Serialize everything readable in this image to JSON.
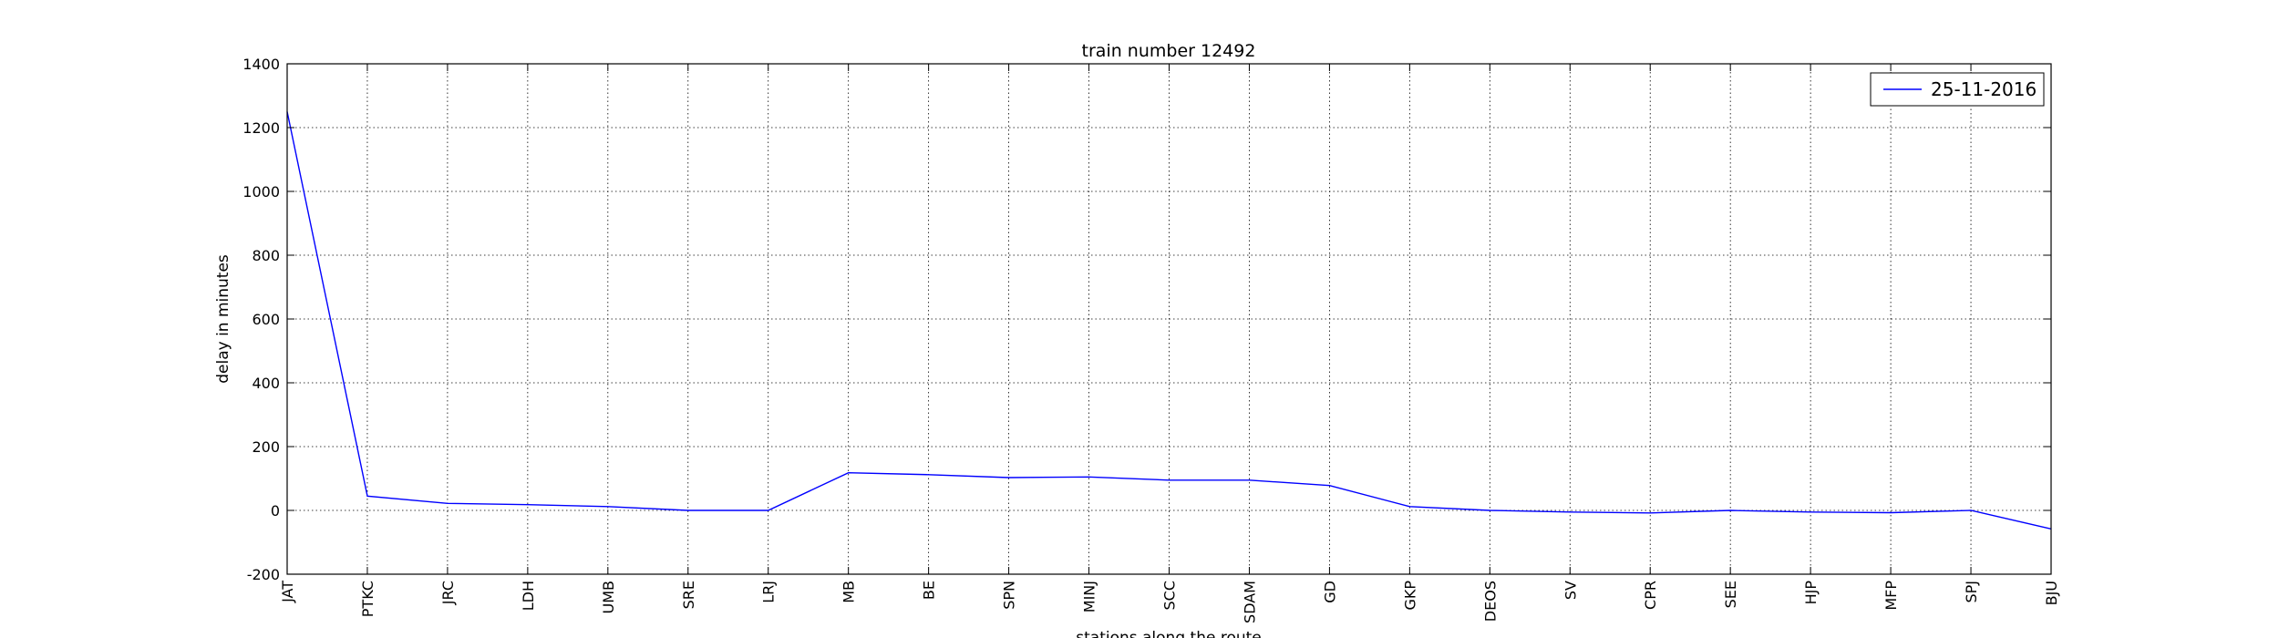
{
  "chart_data": {
    "type": "line",
    "title": "train number 12492",
    "xlabel": "stations along the route",
    "ylabel": "delay in minutes",
    "categories": [
      "JAT",
      "PTKC",
      "JRC",
      "LDH",
      "UMB",
      "SRE",
      "LRJ",
      "MB",
      "BE",
      "SPN",
      "MINJ",
      "SCC",
      "SDAM",
      "GD",
      "GKP",
      "DEOS",
      "SV",
      "CPR",
      "SEE",
      "HJP",
      "MFP",
      "SPJ",
      "BJU"
    ],
    "series": [
      {
        "name": "25-11-2016",
        "color": "#0000ff",
        "values": [
          1250,
          45,
          22,
          18,
          12,
          0,
          0,
          118,
          112,
          103,
          105,
          95,
          95,
          78,
          12,
          0,
          -5,
          -8,
          0,
          -5,
          -7,
          0,
          -58
        ]
      }
    ],
    "ylim": [
      -200,
      1400
    ],
    "yticks": [
      -200,
      0,
      200,
      400,
      600,
      800,
      1000,
      1200,
      1400
    ],
    "grid": true,
    "legend_position": "top-right"
  }
}
